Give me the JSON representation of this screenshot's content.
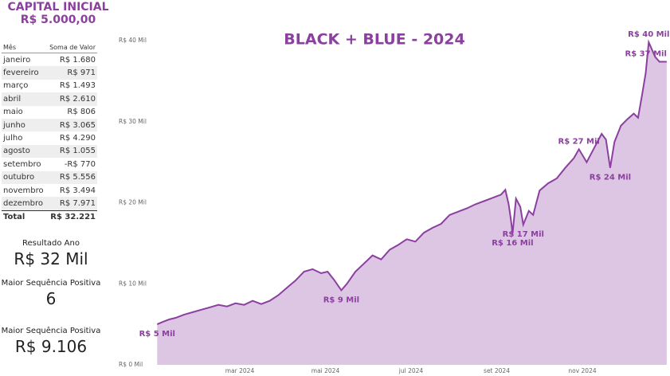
{
  "header": {
    "title": "CAPITAL INICIAL",
    "amount": "R$ 5.000,00"
  },
  "table": {
    "headers": [
      "Mês",
      "Soma de Valor"
    ],
    "rows": [
      [
        "janeiro",
        "R$ 1.680"
      ],
      [
        "fevereiro",
        "R$ 971"
      ],
      [
        "março",
        "R$ 1.493"
      ],
      [
        "abril",
        "R$ 2.610"
      ],
      [
        "maio",
        "R$ 806"
      ],
      [
        "junho",
        "R$ 3.065"
      ],
      [
        "julho",
        "R$ 4.290"
      ],
      [
        "agosto",
        "R$ 1.055"
      ],
      [
        "setembro",
        "-R$ 770"
      ],
      [
        "outubro",
        "R$ 5.556"
      ],
      [
        "novembro",
        "R$ 3.494"
      ],
      [
        "dezembro",
        "R$ 7.971"
      ]
    ],
    "total": [
      "Total",
      "R$ 32.221"
    ]
  },
  "cards": [
    {
      "label": "Resultado Ano",
      "value": "R$ 32 Mil"
    },
    {
      "label": "Maior Sequência Positiva",
      "value": "6"
    },
    {
      "label": "Maior Sequência Positiva",
      "value": "R$ 9.106"
    }
  ],
  "chart_data": {
    "type": "area",
    "title": "BLACK + BLUE - 2024",
    "color": "#8b3f9e",
    "fill": "#dcc6e4",
    "x": [
      1.07,
      1.2,
      1.35,
      1.5,
      1.7,
      1.9,
      2.1,
      2.3,
      2.5,
      2.7,
      2.9,
      3.1,
      3.3,
      3.5,
      3.7,
      3.9,
      4.1,
      4.3,
      4.5,
      4.7,
      4.9,
      5.05,
      5.2,
      5.37,
      5.5,
      5.7,
      5.9,
      6.1,
      6.3,
      6.5,
      6.7,
      6.9,
      7.1,
      7.3,
      7.5,
      7.7,
      7.9,
      8.1,
      8.3,
      8.5,
      8.7,
      8.9,
      9.1,
      9.2,
      9.28,
      9.33,
      9.37,
      9.45,
      9.55,
      9.62,
      9.75,
      9.85,
      10.0,
      10.2,
      10.4,
      10.6,
      10.8,
      10.92,
      11.1,
      11.3,
      11.45,
      11.55,
      11.65,
      11.75,
      11.9,
      12.05,
      12.2,
      12.3,
      12.4,
      12.48,
      12.55,
      12.7,
      12.8,
      12.97
    ],
    "values": [
      5.0,
      5.3,
      5.6,
      5.8,
      6.2,
      6.5,
      6.8,
      7.1,
      7.4,
      7.2,
      7.6,
      7.4,
      7.9,
      7.5,
      7.9,
      8.6,
      9.5,
      10.4,
      11.5,
      11.8,
      11.3,
      11.5,
      10.5,
      9.2,
      10.0,
      11.5,
      12.5,
      13.5,
      13.0,
      14.2,
      14.8,
      15.5,
      15.2,
      16.3,
      16.9,
      17.4,
      18.5,
      18.9,
      19.3,
      19.8,
      20.2,
      20.6,
      21.0,
      21.6,
      19.8,
      18.0,
      16.2,
      20.5,
      19.5,
      17.3,
      19.0,
      18.5,
      21.5,
      22.4,
      23.0,
      24.3,
      25.5,
      26.6,
      25.0,
      27.0,
      28.5,
      27.8,
      24.3,
      27.5,
      29.5,
      30.3,
      31.0,
      30.5,
      33.5,
      36.0,
      39.8,
      38.0,
      37.4,
      37.4
    ],
    "value_labels": [
      "R$ 5 Mil",
      null,
      null,
      null,
      null,
      null,
      null,
      null,
      null,
      null,
      null,
      null,
      null,
      null,
      null,
      null,
      null,
      null,
      null,
      null,
      null,
      null,
      null,
      "R$ 9 Mil",
      null,
      null,
      null,
      null,
      null,
      null,
      null,
      null,
      null,
      null,
      null,
      null,
      null,
      null,
      null,
      null,
      null,
      null,
      null,
      null,
      null,
      null,
      "R$ 16 Mil",
      null,
      null,
      "R$ 17 Mil",
      null,
      null,
      null,
      null,
      null,
      null,
      null,
      "R$ 27 Mil",
      null,
      null,
      null,
      null,
      "R$ 24 Mil",
      null,
      null,
      null,
      null,
      null,
      null,
      null,
      "R$ 40 Mil",
      null,
      null,
      "R$ 37 Mil"
    ],
    "xlim": [
      1,
      13
    ],
    "xticks": [
      {
        "value": 3,
        "label": "mar 2024"
      },
      {
        "value": 5,
        "label": "mai 2024"
      },
      {
        "value": 7,
        "label": "jul 2024"
      },
      {
        "value": 9,
        "label": "set 2024"
      },
      {
        "value": 11,
        "label": "nov 2024"
      }
    ],
    "ylim": [
      0,
      40
    ],
    "yticks": [
      {
        "value": 0,
        "label": "R$ 0 Mil"
      },
      {
        "value": 10,
        "label": "R$ 10 Mil"
      },
      {
        "value": 20,
        "label": "R$ 20 Mil"
      },
      {
        "value": 30,
        "label": "R$ 30 Mil"
      },
      {
        "value": 40,
        "label": "R$ 40 Mil"
      }
    ]
  }
}
